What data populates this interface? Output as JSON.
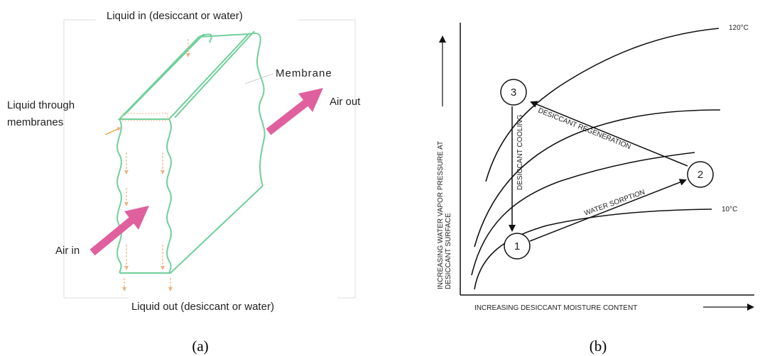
{
  "panel_a": {
    "caption": "(a)",
    "labels": {
      "liquid_in": "Liquid in (desiccant or water)",
      "membrane": "Membrane",
      "air_out": "Air out",
      "liquid_through": [
        "Liquid through",
        "membranes"
      ],
      "air_in": "Air in",
      "liquid_out": "Liquid out (desiccant or water)"
    }
  },
  "panel_b": {
    "caption": "(b)",
    "y_axis_label": [
      "INCREASING WATER VAPOR PRESSURE AT",
      "DESICCANT SURFACE"
    ],
    "x_axis_label": "INCREASING DESICCANT MOISTURE CONTENT",
    "curve_labels": {
      "top": "120°C",
      "bottom": "10°C"
    },
    "states": [
      "1",
      "2",
      "3"
    ],
    "processes": {
      "regeneration": "DESICCANT REGENERATION",
      "cooling": "DESICCANT COOLING",
      "sorption": "WATER SORPTION"
    }
  }
}
